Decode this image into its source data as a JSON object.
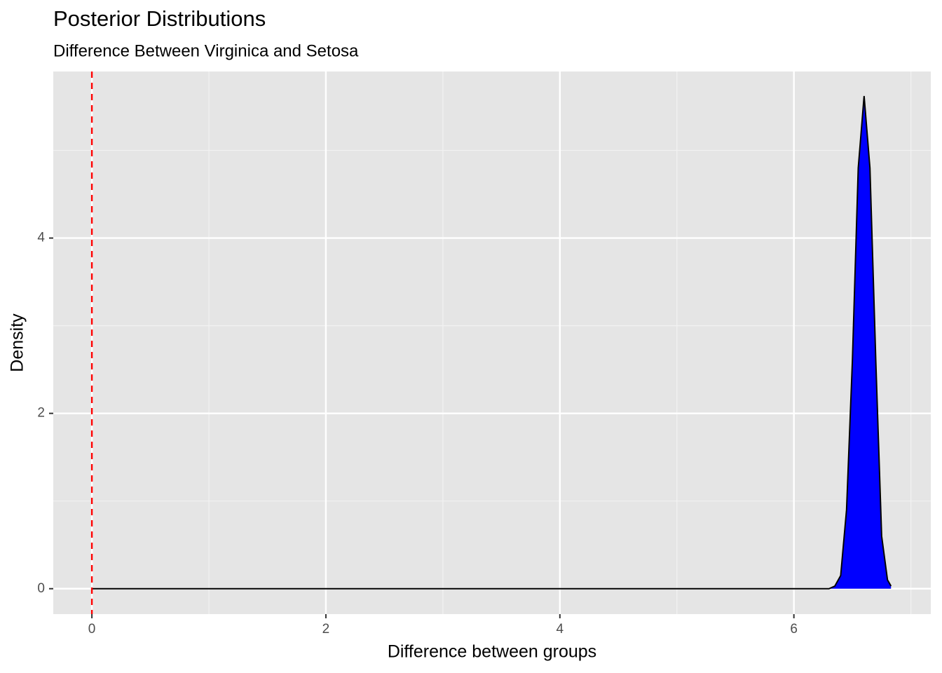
{
  "chart_data": {
    "type": "area",
    "title": "Posterior Distributions",
    "subtitle": "Difference Between Virginica and Setosa",
    "xlabel": "Difference between groups",
    "ylabel": "Density",
    "x": [
      0,
      1,
      2,
      3,
      4,
      5,
      6,
      6.3,
      6.35,
      6.4,
      6.45,
      6.5,
      6.55,
      6.6,
      6.65,
      6.7,
      6.75,
      6.8,
      6.83
    ],
    "values": [
      0,
      0,
      0,
      0,
      0,
      0,
      0,
      0,
      0.03,
      0.15,
      0.9,
      2.6,
      4.8,
      5.62,
      4.8,
      2.6,
      0.6,
      0.1,
      0.03
    ],
    "color": "#0000ff",
    "outline": "#000000",
    "xlim": [
      -0.33,
      7.17
    ],
    "ylim": [
      -0.29,
      5.9
    ],
    "xticks": [
      0,
      2,
      4,
      6
    ],
    "yticks": [
      0,
      2,
      4
    ],
    "xminor": [
      1,
      3,
      5,
      7
    ],
    "yminor": [
      1,
      3,
      5
    ],
    "vline": 0,
    "vline_color": "#ff0000",
    "grid": true
  }
}
